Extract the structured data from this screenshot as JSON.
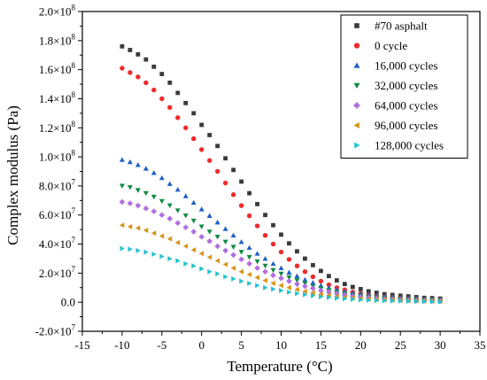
{
  "chart_data": {
    "type": "scatter",
    "title": "",
    "xlabel": "Temperature (°C)",
    "ylabel": "Complex modulus (Pa)",
    "xlim": [
      -15,
      35
    ],
    "ylim": [
      -20000000,
      200000000
    ],
    "x_ticks": [
      -15,
      -10,
      -5,
      0,
      5,
      10,
      15,
      20,
      25,
      30,
      35
    ],
    "x_tick_labels": [
      "-15",
      "-10",
      "-5",
      "0",
      "5",
      "10",
      "15",
      "20",
      "25",
      "30",
      "35"
    ],
    "y_ticks": [
      -20000000,
      0,
      20000000,
      40000000,
      60000000,
      80000000,
      100000000,
      120000000,
      140000000,
      160000000,
      180000000,
      200000000
    ],
    "y_tick_labels": [
      {
        "mant": "-2.0×10",
        "exp": "7"
      },
      {
        "mant": "0.0",
        "exp": ""
      },
      {
        "mant": "2.0×10",
        "exp": "7"
      },
      {
        "mant": "4.0×10",
        "exp": "7"
      },
      {
        "mant": "6.0×10",
        "exp": "7"
      },
      {
        "mant": "8.0×10",
        "exp": "7"
      },
      {
        "mant": "1.0×10",
        "exp": "8"
      },
      {
        "mant": "1.2×10",
        "exp": "8"
      },
      {
        "mant": "1.4×10",
        "exp": "8"
      },
      {
        "mant": "1.6×10",
        "exp": "8"
      },
      {
        "mant": "1.8×10",
        "exp": "8"
      },
      {
        "mant": "2.0×10",
        "exp": "8"
      }
    ],
    "grid": false,
    "legend_position": "top-right",
    "x": [
      -10,
      -9,
      -8,
      -7,
      -6,
      -5,
      -4,
      -3,
      -2,
      -1,
      0,
      1,
      2,
      3,
      4,
      5,
      6,
      7,
      8,
      9,
      10,
      11,
      12,
      13,
      14,
      15,
      16,
      17,
      18,
      19,
      20,
      21,
      22,
      23,
      24,
      25,
      26,
      27,
      28,
      29,
      30
    ],
    "series": [
      {
        "name": "#70 asphalt",
        "marker": "square",
        "color": "#3a3a3a",
        "values": [
          176000000,
          173500000,
          170500000,
          167000000,
          162000000,
          157000000,
          151000000,
          144000000,
          137000000,
          130000000,
          122000000,
          115000000,
          107500000,
          99000000,
          91000000,
          83000000,
          75000000,
          67500000,
          60000000,
          53000000,
          46500000,
          40500000,
          35000000,
          30000000,
          25500000,
          21500000,
          18000000,
          15000000,
          12500000,
          10500000,
          9000000,
          7500000,
          6500000,
          5500000,
          5000000,
          4500000,
          4000000,
          3500000,
          3000000,
          2800000,
          2500000
        ]
      },
      {
        "name": "0 cycle",
        "marker": "circle",
        "color": "#ee2a2a",
        "values": [
          161000000,
          158000000,
          155000000,
          151000000,
          146000000,
          140000000,
          134000000,
          127000000,
          120000000,
          112500000,
          105000000,
          97500000,
          90000000,
          82000000,
          74000000,
          66500000,
          59500000,
          52500000,
          46000000,
          40000000,
          34500000,
          29500000,
          25000000,
          21000000,
          17500000,
          14500000,
          12000000,
          10000000,
          8500000,
          7000000,
          6000000,
          5000000,
          4300000,
          3700000,
          3200000,
          2800000,
          2400000,
          2100000,
          1800000,
          1600000,
          1400000
        ]
      },
      {
        "name": "16,000 cycles",
        "marker": "triangle-up",
        "color": "#1f60c8",
        "values": [
          98000000,
          96500000,
          94500000,
          92000000,
          89000000,
          85500000,
          81500000,
          77500000,
          73000000,
          68500000,
          64000000,
          59500000,
          55000000,
          50500000,
          46000000,
          41500000,
          37500000,
          33500000,
          30000000,
          26500000,
          23500000,
          20500000,
          18000000,
          15500000,
          13500000,
          11500000,
          10000000,
          8500000,
          7300000,
          6300000,
          5500000,
          4800000,
          4200000,
          3700000,
          3300000,
          2900000,
          2600000,
          2300000,
          2100000,
          1900000,
          1700000
        ]
      },
      {
        "name": "32,000 cycles",
        "marker": "triangle-down",
        "color": "#0f8a44",
        "values": [
          80000000,
          79000000,
          77000000,
          75000000,
          72500000,
          69500000,
          66500000,
          63000000,
          59500000,
          56000000,
          52000000,
          48500000,
          45000000,
          41500000,
          38000000,
          34500000,
          31000000,
          28000000,
          25000000,
          22000000,
          19500000,
          17000000,
          15000000,
          13000000,
          11000000,
          9500000,
          8000000,
          7000000,
          6000000,
          5000000,
          4300000,
          3700000,
          3200000,
          2800000,
          2400000,
          2100000,
          1800000,
          1600000,
          1400000,
          1200000,
          1000000
        ]
      },
      {
        "name": "64,000 cycles",
        "marker": "diamond",
        "color": "#b26ee0",
        "values": [
          69000000,
          68000000,
          66500000,
          64500000,
          62500000,
          60000000,
          57500000,
          54500000,
          51500000,
          48500000,
          45000000,
          42000000,
          38500000,
          35500000,
          32500000,
          29500000,
          26500000,
          23500000,
          21000000,
          18500000,
          16500000,
          14500000,
          12500000,
          11000000,
          9500000,
          8000000,
          7000000,
          6000000,
          5000000,
          4200000,
          3600000,
          3100000,
          2600000,
          2200000,
          1900000,
          1600000,
          1400000,
          1200000,
          1000000,
          900000,
          800000
        ]
      },
      {
        "name": "96,000 cycles",
        "marker": "triangle-left",
        "color": "#d79215",
        "values": [
          53000000,
          52000000,
          51000000,
          49500000,
          47500000,
          45500000,
          43500000,
          41000000,
          38500000,
          36000000,
          33500000,
          31000000,
          28500000,
          26000000,
          23500000,
          21000000,
          19000000,
          17000000,
          15000000,
          13000000,
          11500000,
          10000000,
          8700000,
          7500000,
          6500000,
          5500000,
          4800000,
          4100000,
          3500000,
          3000000,
          2600000,
          2200000,
          1900000,
          1600000,
          1400000,
          1200000,
          1000000,
          900000,
          800000,
          700000,
          600000
        ]
      },
      {
        "name": "128,000 cycles",
        "marker": "triangle-right",
        "color": "#1ec3d2",
        "values": [
          37000000,
          36500000,
          35500000,
          34500000,
          33000000,
          31500000,
          30000000,
          28500000,
          26500000,
          25000000,
          23000000,
          21000000,
          19500000,
          17500000,
          16000000,
          14500000,
          13000000,
          11500000,
          10000000,
          9000000,
          8000000,
          7000000,
          6000000,
          5200000,
          4500000,
          3800000,
          3300000,
          2800000,
          2400000,
          2000000,
          1700000,
          1400000,
          1200000,
          1000000,
          900000,
          800000,
          700000,
          600000,
          500000,
          400000,
          300000
        ]
      }
    ]
  }
}
